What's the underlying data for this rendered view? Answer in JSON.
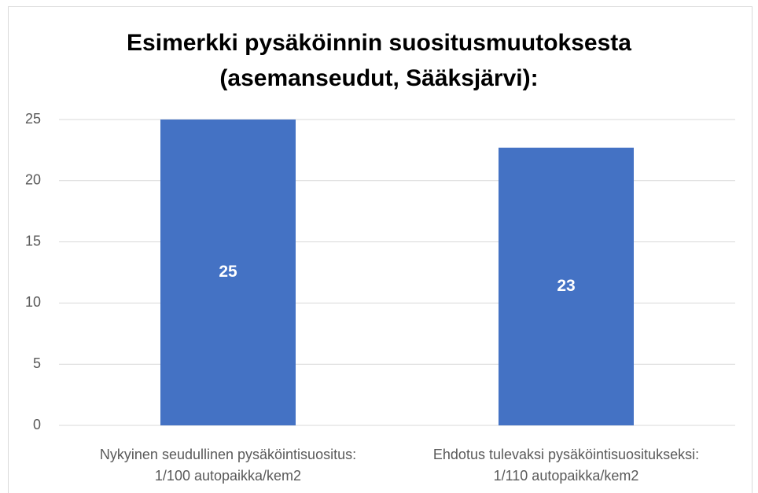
{
  "chart_data": {
    "type": "bar",
    "title": [
      "Esimerkki pysäköinnin suositusmuutoksesta",
      "(asemanseudut, Sääksjärvi):"
    ],
    "categories": [
      [
        "Nykyinen seudullinen pysäköintisuositus:",
        "1/100 autopaikka/kem2"
      ],
      [
        "Ehdotus tulevaksi pysäköintisuositukseksi:",
        "1/110 autopaikka/kem2"
      ]
    ],
    "values": [
      25,
      22.7
    ],
    "value_labels": [
      "25",
      "23"
    ],
    "color": "#4472c4",
    "ylim": [
      0,
      25
    ],
    "yticks": [
      0,
      5,
      10,
      15,
      20,
      25
    ],
    "grid": true
  }
}
